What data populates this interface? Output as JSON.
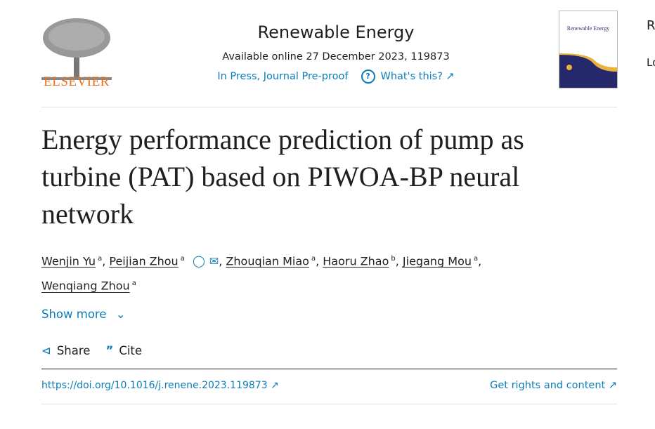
{
  "publisher": {
    "logo_text": "ELSEVIER"
  },
  "journal": {
    "title": "Renewable Energy",
    "available": "Available online 27 December 2023, 119873",
    "status": "In Press, Journal Pre-proof",
    "whats_this": "What's this? ↗",
    "cover_title": "Renewable Energy"
  },
  "side": {
    "r": "R",
    "lo": "Lo"
  },
  "article": {
    "title": "Energy performance prediction of pump as turbine (PAT) based on PIWOA-BP neural network"
  },
  "authors": [
    {
      "name": "Wenjin Yu",
      "aff": "a"
    },
    {
      "name": "Peijian Zhou",
      "aff": "a"
    },
    {
      "name": "Zhouqian Miao",
      "aff": "a"
    },
    {
      "name": "Haoru Zhao",
      "aff": "b"
    },
    {
      "name": "Jiegang Mou",
      "aff": "a"
    },
    {
      "name": "Wenqiang Zhou",
      "aff": "a"
    }
  ],
  "actions": {
    "show_more": "Show more",
    "share": "Share",
    "cite": "Cite"
  },
  "links": {
    "doi": "https://doi.org/10.1016/j.renene.2023.119873 ↗",
    "rights": "Get rights and content ↗"
  },
  "colors": {
    "link": "#0c7dbb",
    "elsevier": "#e9711c"
  }
}
